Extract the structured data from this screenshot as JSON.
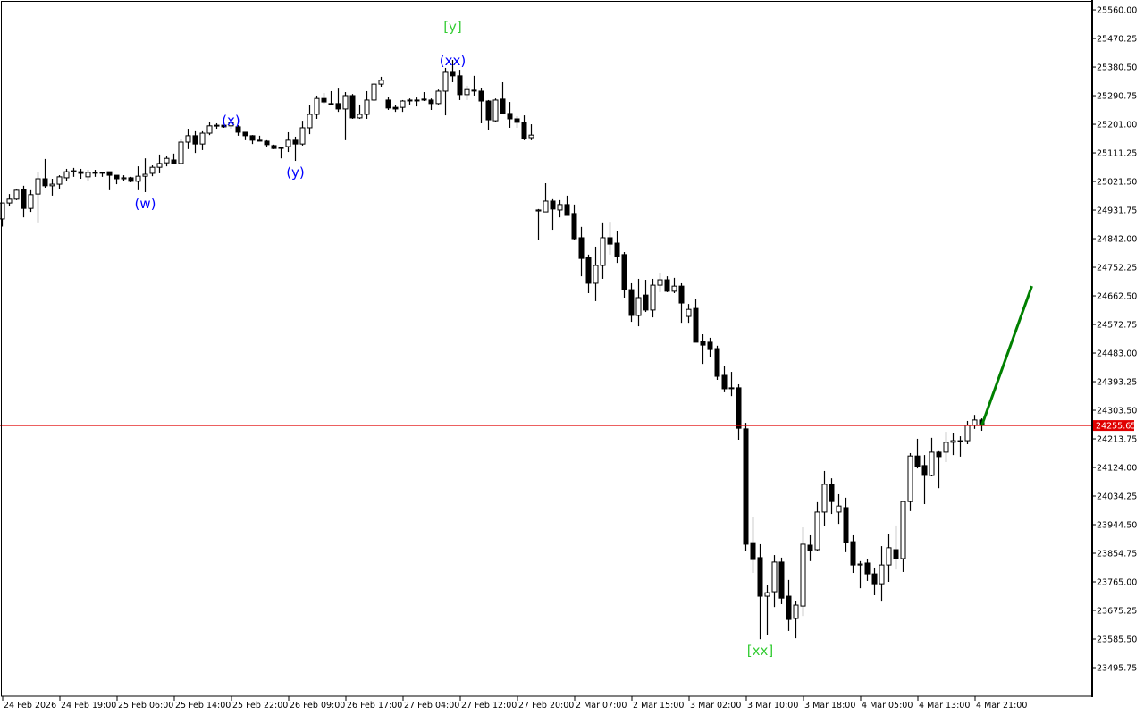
{
  "chart_data": {
    "type": "candlestick",
    "ylim": [
      23406,
      25591
    ],
    "y_ticks": [
      25560.0,
      25470.25,
      25380.5,
      25290.75,
      25201.0,
      25111.25,
      25021.5,
      24931.75,
      24842.0,
      24752.25,
      24662.5,
      24572.75,
      24483.0,
      24393.25,
      24303.5,
      24213.75,
      24124.0,
      24034.25,
      23944.5,
      23854.75,
      23765.0,
      23675.25,
      23585.5,
      23495.75
    ],
    "y_tick_labels": [
      "25560.00",
      "25470.25",
      "25380.50",
      "25290.75",
      "25201.00",
      "25111.25",
      "25021.50",
      "24931.75",
      "24842.00",
      "24752.25",
      "24662.50",
      "24572.75",
      "24483.00",
      "24393.25",
      "24303.50",
      "24213.75",
      "24124.00",
      "24034.25",
      "23944.50",
      "23854.75",
      "23765.00",
      "23675.25",
      "23585.50",
      "23495.75"
    ],
    "x_tick_labels": [
      "24 Feb 2026",
      "24 Feb 19:00",
      "25 Feb 06:00",
      "25 Feb 14:00",
      "25 Feb 22:00",
      "26 Feb 09:00",
      "26 Feb 17:00",
      "27 Feb 04:00",
      "27 Feb 12:00",
      "27 Feb 20:00",
      "2 Mar 07:00",
      "2 Mar 15:00",
      "3 Mar 02:00",
      "3 Mar 10:00",
      "3 Mar 18:00",
      "4 Mar 05:00",
      "4 Mar 13:00",
      "4 Mar 21:00"
    ],
    "x_tick_every_bars": 8,
    "current_price": 24255.65,
    "current_price_label": "24255.65",
    "colors": {
      "bull_body": "#ffffff",
      "bear_body": "#000000",
      "outline": "#000000",
      "price_line": "#e00000",
      "projection": "#008000",
      "wave_major": "#33cc33",
      "wave_minor": "#0000ff"
    },
    "ohlc": [
      [
        24904,
        24954,
        24880,
        24954
      ],
      [
        24954,
        24982,
        24943,
        24966
      ],
      [
        24966,
        24996,
        24963,
        24994
      ],
      [
        24996,
        25008,
        24909,
        24937
      ],
      [
        24937,
        24994,
        24926,
        24980
      ],
      [
        24982,
        25052,
        24893,
        25030
      ],
      [
        25030,
        25092,
        25002,
        25008
      ],
      [
        25008,
        25030,
        24977,
        25013
      ],
      [
        25013,
        25041,
        24999,
        25036
      ],
      [
        25033,
        25061,
        25022,
        25052
      ],
      [
        25052,
        25064,
        25036,
        25055
      ],
      [
        25052,
        25061,
        25030,
        25047
      ],
      [
        25036,
        25058,
        25022,
        25050
      ],
      [
        25050,
        25058,
        25036,
        25050
      ],
      [
        25050,
        25052,
        25036,
        25050
      ],
      [
        25052,
        25052,
        24994,
        25041
      ],
      [
        25041,
        25041,
        25013,
        25030
      ],
      [
        25030,
        25041,
        25022,
        25033
      ],
      [
        25033,
        25036,
        25019,
        25022
      ],
      [
        25022,
        25069,
        24994,
        25038
      ],
      [
        25038,
        25094,
        24988,
        25044
      ],
      [
        25047,
        25072,
        25038,
        25066
      ],
      [
        25066,
        25106,
        25047,
        25078
      ],
      [
        25080,
        25103,
        25069,
        25094
      ],
      [
        25089,
        25109,
        25075,
        25078
      ],
      [
        25078,
        25156,
        25075,
        25145
      ],
      [
        25145,
        25187,
        25123,
        25165
      ],
      [
        25165,
        25179,
        25111,
        25139
      ],
      [
        25139,
        25179,
        25120,
        25173
      ],
      [
        25173,
        25207,
        25167,
        25196
      ],
      [
        25196,
        25204,
        25187,
        25198
      ],
      [
        25198,
        25198,
        25190,
        25193
      ],
      [
        25196,
        25215,
        25187,
        25207
      ],
      [
        25193,
        25198,
        25165,
        25176
      ],
      [
        25176,
        25176,
        25151,
        25165
      ],
      [
        25165,
        25167,
        25139,
        25151
      ],
      [
        25151,
        25165,
        25148,
        25148
      ],
      [
        25148,
        25151,
        25131,
        25137
      ],
      [
        25134,
        25137,
        25123,
        25125
      ],
      [
        25128,
        25131,
        25094,
        25128
      ],
      [
        25131,
        25176,
        25114,
        25151
      ],
      [
        25151,
        25162,
        25086,
        25139
      ],
      [
        25139,
        25212,
        25134,
        25190
      ],
      [
        25190,
        25260,
        25170,
        25232
      ],
      [
        25232,
        25291,
        25218,
        25282
      ],
      [
        25282,
        25299,
        25266,
        25271
      ],
      [
        25266,
        25305,
        25263,
        25266
      ],
      [
        25266,
        25313,
        25240,
        25249
      ],
      [
        25249,
        25302,
        25151,
        25291
      ],
      [
        25291,
        25296,
        25218,
        25221
      ],
      [
        25221,
        25263,
        25218,
        25232
      ],
      [
        25232,
        25305,
        25218,
        25277
      ],
      [
        25277,
        25330,
        25274,
        25327
      ],
      [
        25327,
        25350,
        25319,
        25339
      ],
      [
        25277,
        25288,
        25246,
        25252
      ],
      [
        25254,
        25260,
        25240,
        25249
      ],
      [
        25254,
        25277,
        25240,
        25274
      ],
      [
        25277,
        25282,
        25263,
        25277
      ],
      [
        25277,
        25285,
        25257,
        25277
      ],
      [
        25280,
        25302,
        25274,
        25277
      ],
      [
        25277,
        25282,
        25246,
        25266
      ],
      [
        25266,
        25310,
        25263,
        25305
      ],
      [
        25305,
        25378,
        25229,
        25364
      ],
      [
        25364,
        25403,
        25333,
        25353
      ],
      [
        25353,
        25372,
        25277,
        25294
      ],
      [
        25294,
        25322,
        25277,
        25310
      ],
      [
        25308,
        25353,
        25291,
        25308
      ],
      [
        25305,
        25316,
        25204,
        25274
      ],
      [
        25274,
        25277,
        25184,
        25215
      ],
      [
        25212,
        25282,
        25209,
        25277
      ],
      [
        25280,
        25333,
        25232,
        25235
      ],
      [
        25235,
        25271,
        25190,
        25218
      ],
      [
        25218,
        25226,
        25190,
        25207
      ],
      [
        25207,
        25229,
        25151,
        25156
      ],
      [
        25159,
        25201,
        25151,
        25167
      ],
      [
        24929,
        24935,
        24839,
        24932
      ],
      [
        24926,
        25016,
        24926,
        24960
      ],
      [
        24960,
        24966,
        24870,
        24935
      ],
      [
        24932,
        24963,
        24909,
        24949
      ],
      [
        24949,
        24977,
        24915,
        24915
      ],
      [
        24921,
        24949,
        24839,
        24842
      ],
      [
        24845,
        24879,
        24724,
        24780
      ],
      [
        24783,
        24792,
        24671,
        24702
      ],
      [
        24702,
        24817,
        24646,
        24758
      ],
      [
        24758,
        24893,
        24716,
        24845
      ],
      [
        24845,
        24895,
        24792,
        24825
      ],
      [
        24828,
        24867,
        24766,
        24786
      ],
      [
        24792,
        24800,
        24657,
        24682
      ],
      [
        24682,
        24702,
        24581,
        24601
      ],
      [
        24601,
        24716,
        24567,
        24657
      ],
      [
        24665,
        24713,
        24612,
        24618
      ],
      [
        24618,
        24716,
        24595,
        24696
      ],
      [
        24696,
        24733,
        24674,
        24713
      ],
      [
        24713,
        24724,
        24674,
        24677
      ],
      [
        24677,
        24719,
        24671,
        24693
      ],
      [
        24693,
        24702,
        24578,
        24640
      ],
      [
        24598,
        24637,
        24578,
        24620
      ],
      [
        24623,
        24654,
        24517,
        24517
      ],
      [
        24520,
        24542,
        24449,
        24508
      ],
      [
        24517,
        24531,
        24469,
        24494
      ],
      [
        24497,
        24506,
        24399,
        24410
      ],
      [
        24413,
        24441,
        24360,
        24371
      ],
      [
        24374,
        24424,
        24348,
        24374
      ],
      [
        24374,
        24385,
        24211,
        24247
      ],
      [
        24245,
        24264,
        23863,
        23883
      ],
      [
        23888,
        23970,
        23793,
        23835
      ],
      [
        23841,
        23883,
        23585,
        23720
      ],
      [
        23720,
        23754,
        23599,
        23731
      ],
      [
        23734,
        23849,
        23686,
        23827
      ],
      [
        23827,
        23841,
        23695,
        23714
      ],
      [
        23720,
        23771,
        23611,
        23647
      ],
      [
        23650,
        23706,
        23588,
        23692
      ],
      [
        23689,
        23936,
        23658,
        23883
      ],
      [
        23880,
        23911,
        23830,
        23863
      ],
      [
        23866,
        24015,
        23863,
        23984
      ],
      [
        23984,
        24113,
        23939,
        24071
      ],
      [
        24071,
        24090,
        23978,
        24017
      ],
      [
        23984,
        24040,
        23947,
        24003
      ],
      [
        23998,
        24029,
        23858,
        23888
      ],
      [
        23891,
        23911,
        23793,
        23818
      ],
      [
        23818,
        23830,
        23745,
        23821
      ],
      [
        23824,
        23838,
        23768,
        23790
      ],
      [
        23790,
        23810,
        23723,
        23759
      ],
      [
        23759,
        23877,
        23703,
        23818
      ],
      [
        23818,
        23916,
        23765,
        23872
      ],
      [
        23866,
        23942,
        23804,
        23838
      ],
      [
        23838,
        24020,
        23796,
        24017
      ],
      [
        24017,
        24169,
        23987,
        24160
      ],
      [
        24160,
        24214,
        24121,
        24127
      ],
      [
        24130,
        24163,
        24009,
        24099
      ],
      [
        24099,
        24217,
        24096,
        24172
      ],
      [
        24172,
        24175,
        24059,
        24158
      ],
      [
        24172,
        24236,
        24141,
        24203
      ],
      [
        24203,
        24231,
        24163,
        24208
      ],
      [
        24208,
        24222,
        24158,
        24208
      ],
      [
        24208,
        24270,
        24197,
        24256
      ],
      [
        24256,
        24289,
        24245,
        24273
      ],
      [
        24273,
        24278,
        24239,
        24256
      ]
    ],
    "projection": {
      "from_bar": 137,
      "from_price": 24256,
      "to_bar": 144,
      "to_price": 24693
    },
    "wave_labels": [
      {
        "text": "(w)",
        "bar": 20,
        "price": 24988,
        "position": "below",
        "kind": "minor"
      },
      {
        "text": "(x)",
        "bar": 32,
        "price": 25215,
        "position": "on",
        "kind": "minor"
      },
      {
        "text": "(y)",
        "bar": 41,
        "price": 25086,
        "position": "below",
        "kind": "minor"
      },
      {
        "text": "(xx)",
        "bar": 63,
        "price": 25403,
        "position": "on",
        "kind": "minor"
      },
      {
        "text": "[y]",
        "bar": 63,
        "price": 25403,
        "position": "above",
        "kind": "major"
      },
      {
        "text": "[xx]",
        "bar": 106,
        "price": 23585,
        "position": "below",
        "kind": "major"
      }
    ]
  }
}
